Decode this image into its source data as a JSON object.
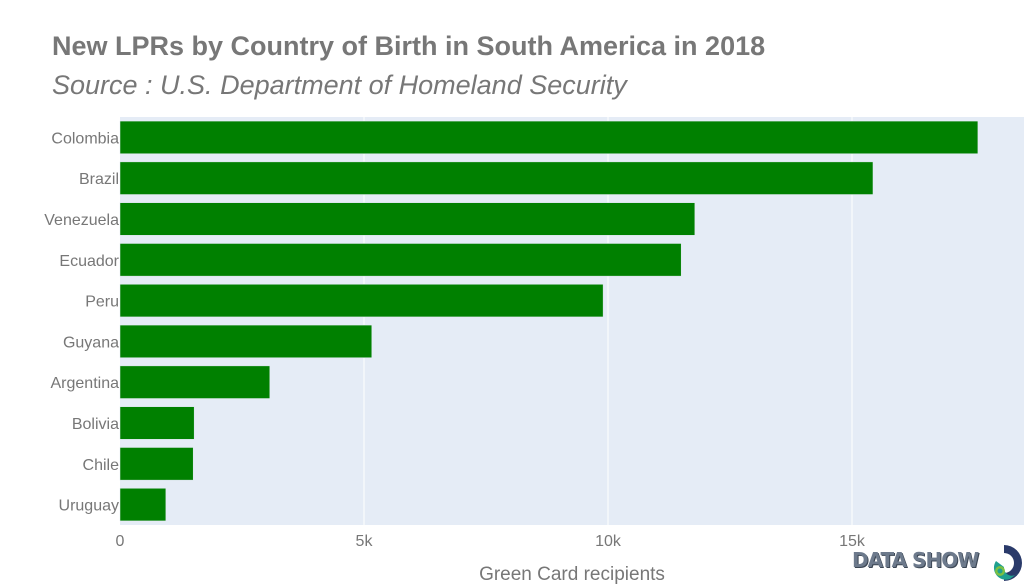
{
  "chart_data": {
    "type": "bar",
    "orientation": "horizontal",
    "title": "New LPRs by Country of Birth in South America in 2018",
    "subtitle": "Source : U.S. Department of Homeland Security",
    "xlabel": "Green Card recipients",
    "ylabel": "",
    "categories": [
      "Colombia",
      "Brazil",
      "Venezuela",
      "Ecuador",
      "Peru",
      "Guyana",
      "Argentina",
      "Bolivia",
      "Chile",
      "Uruguay"
    ],
    "values": [
      17580,
      15430,
      11780,
      11500,
      9900,
      5160,
      3070,
      1520,
      1500,
      940
    ],
    "xlim": [
      0,
      18500
    ],
    "xticks": [
      0,
      5000,
      10000,
      15000
    ],
    "xtick_labels": [
      "0",
      "5k",
      "10k",
      "15k"
    ],
    "grid": true,
    "legend": "none",
    "colors": {
      "bar": "#008000",
      "plot_bg": "#e5ecf6",
      "grid": "#ffffff",
      "text": "#777777"
    }
  },
  "branding": {
    "logo_text": "DATA SHOW"
  }
}
